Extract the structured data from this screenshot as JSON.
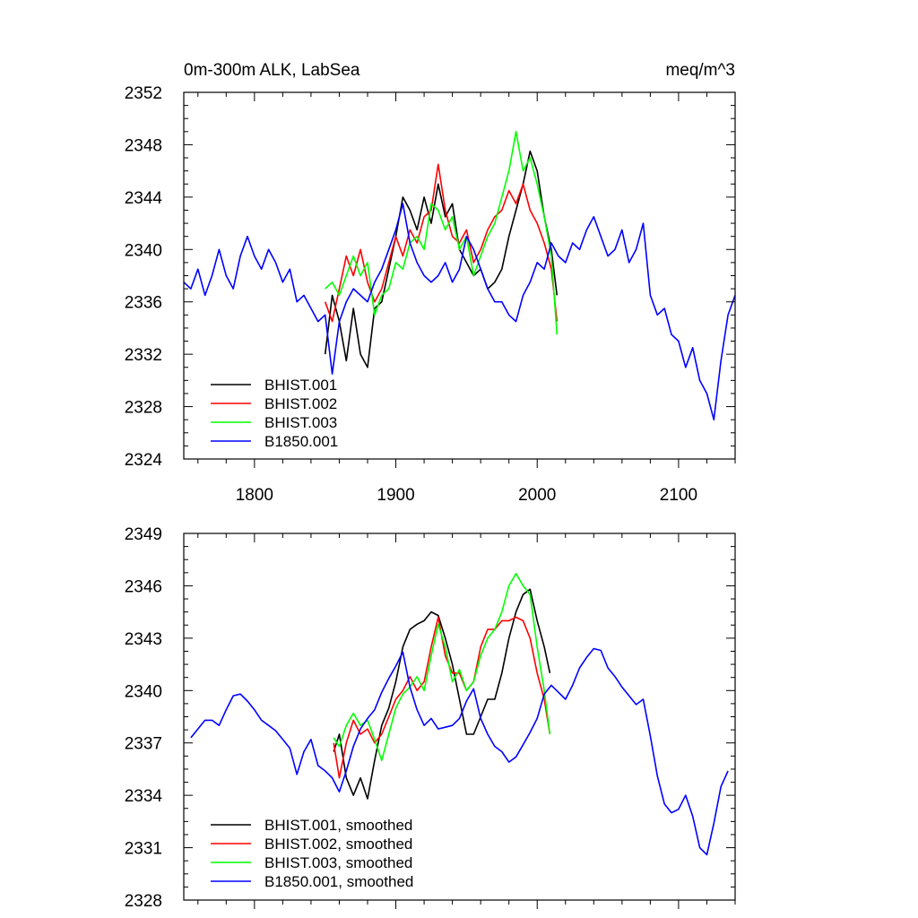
{
  "chart_data": [
    {
      "type": "line",
      "title": "0m-300m ALK, LabSea",
      "units": "meq/m^3",
      "xlabel": "",
      "ylabel": "",
      "xlim": [
        1750,
        2140
      ],
      "ylim": [
        2324,
        2352
      ],
      "x_ticks": [
        1800,
        1900,
        2000,
        2100
      ],
      "x_tick_labels": [
        "1800",
        "1900",
        "2000",
        "2100"
      ],
      "y_ticks": [
        2324,
        2328,
        2332,
        2336,
        2340,
        2344,
        2348,
        2352
      ],
      "y_tick_labels": [
        "2324",
        "2328",
        "2332",
        "2336",
        "2340",
        "2344",
        "2348",
        "2352"
      ],
      "legend_position": "bottom-left",
      "grid": false,
      "series": [
        {
          "name": "BHIST.001",
          "color": "#000000",
          "x": [
            1850,
            1855,
            1860,
            1865,
            1870,
            1875,
            1880,
            1885,
            1890,
            1895,
            1900,
            1905,
            1910,
            1915,
            1920,
            1925,
            1930,
            1935,
            1940,
            1945,
            1950,
            1955,
            1960,
            1965,
            1970,
            1975,
            1980,
            1985,
            1990,
            1995,
            2000,
            2005,
            2010,
            2014
          ],
          "y": [
            2332.0,
            2336.5,
            2334.5,
            2331.5,
            2335.5,
            2332.0,
            2331.0,
            2335.5,
            2336.0,
            2338.5,
            2341.0,
            2344.0,
            2343.0,
            2341.5,
            2344.0,
            2342.0,
            2345.0,
            2342.5,
            2343.5,
            2340.0,
            2339.0,
            2338.0,
            2338.5,
            2337.0,
            2337.5,
            2338.5,
            2341.0,
            2343.0,
            2345.0,
            2347.5,
            2346.0,
            2342.5,
            2340.0,
            2336.5
          ]
        },
        {
          "name": "BHIST.002",
          "color": "#ff0000",
          "x": [
            1850,
            1855,
            1860,
            1865,
            1870,
            1875,
            1880,
            1885,
            1890,
            1895,
            1900,
            1905,
            1910,
            1915,
            1920,
            1925,
            1930,
            1935,
            1940,
            1945,
            1950,
            1955,
            1960,
            1965,
            1970,
            1975,
            1980,
            1985,
            1990,
            1995,
            2000,
            2005,
            2010,
            2014
          ],
          "y": [
            2336.0,
            2334.5,
            2337.0,
            2339.5,
            2338.0,
            2340.0,
            2337.5,
            2336.0,
            2337.0,
            2339.0,
            2341.0,
            2339.5,
            2341.5,
            2340.5,
            2342.5,
            2343.0,
            2346.5,
            2343.0,
            2341.0,
            2340.5,
            2341.5,
            2339.0,
            2340.0,
            2341.5,
            2342.5,
            2343.0,
            2344.5,
            2343.5,
            2345.0,
            2343.0,
            2342.0,
            2340.5,
            2338.5,
            2334.5
          ]
        },
        {
          "name": "BHIST.003",
          "color": "#00ff00",
          "x": [
            1850,
            1855,
            1860,
            1865,
            1870,
            1875,
            1880,
            1885,
            1890,
            1895,
            1900,
            1905,
            1910,
            1915,
            1920,
            1925,
            1930,
            1935,
            1940,
            1945,
            1950,
            1955,
            1960,
            1965,
            1970,
            1975,
            1980,
            1985,
            1990,
            1995,
            2000,
            2005,
            2010,
            2014
          ],
          "y": [
            2337.0,
            2337.5,
            2336.5,
            2338.0,
            2339.5,
            2338.0,
            2339.0,
            2335.0,
            2336.5,
            2337.0,
            2339.0,
            2338.5,
            2340.5,
            2341.0,
            2340.0,
            2343.5,
            2343.0,
            2341.5,
            2342.5,
            2340.0,
            2341.0,
            2338.0,
            2339.5,
            2341.0,
            2342.0,
            2344.0,
            2346.0,
            2349.0,
            2346.0,
            2347.0,
            2345.0,
            2342.5,
            2339.5,
            2333.5
          ]
        },
        {
          "name": "B1850.001",
          "color": "#0000ff",
          "x": [
            1750,
            1755,
            1760,
            1765,
            1770,
            1775,
            1780,
            1785,
            1790,
            1795,
            1800,
            1805,
            1810,
            1815,
            1820,
            1825,
            1830,
            1835,
            1840,
            1845,
            1850,
            1855,
            1860,
            1865,
            1870,
            1875,
            1880,
            1885,
            1890,
            1895,
            1900,
            1905,
            1910,
            1915,
            1920,
            1925,
            1930,
            1935,
            1940,
            1945,
            1950,
            1955,
            1960,
            1965,
            1970,
            1975,
            1980,
            1985,
            1990,
            1995,
            2000,
            2005,
            2010,
            2015,
            2020,
            2025,
            2030,
            2035,
            2040,
            2045,
            2050,
            2055,
            2060,
            2065,
            2070,
            2075,
            2080,
            2085,
            2090,
            2095,
            2100,
            2105,
            2110,
            2115,
            2120,
            2125,
            2130,
            2135,
            2140
          ],
          "y": [
            2337.5,
            2337.0,
            2338.5,
            2336.5,
            2338.0,
            2340.0,
            2338.0,
            2337.0,
            2339.5,
            2341.0,
            2339.5,
            2338.5,
            2340.0,
            2339.0,
            2337.5,
            2338.5,
            2336.0,
            2336.5,
            2335.5,
            2334.5,
            2335.0,
            2330.5,
            2334.5,
            2336.0,
            2337.0,
            2336.5,
            2336.0,
            2337.5,
            2338.5,
            2340.0,
            2341.5,
            2343.5,
            2340.5,
            2339.0,
            2338.0,
            2337.5,
            2338.0,
            2339.0,
            2337.5,
            2338.5,
            2341.0,
            2340.0,
            2338.5,
            2337.0,
            2336.0,
            2336.0,
            2335.0,
            2334.5,
            2336.5,
            2337.5,
            2339.0,
            2338.5,
            2340.5,
            2339.5,
            2339.0,
            2340.5,
            2340.0,
            2341.5,
            2342.5,
            2341.0,
            2339.5,
            2340.0,
            2341.5,
            2339.0,
            2340.0,
            2342.0,
            2336.5,
            2335.0,
            2335.5,
            2333.5,
            2333.0,
            2331.0,
            2332.5,
            2330.0,
            2329.0,
            2327.0,
            2331.5,
            2335.0,
            2336.5
          ]
        }
      ]
    },
    {
      "type": "line",
      "title": "",
      "xlabel": "",
      "ylabel": "",
      "xlim": [
        1750,
        2140
      ],
      "ylim": [
        2328,
        2349
      ],
      "x_ticks": [
        1800,
        1900,
        2000,
        2100
      ],
      "x_tick_labels": [
        "",
        "",
        "",
        ""
      ],
      "y_ticks": [
        2328,
        2331,
        2334,
        2337,
        2340,
        2343,
        2346,
        2349
      ],
      "y_tick_labels": [
        "2328",
        "2331",
        "2334",
        "2337",
        "2340",
        "2343",
        "2346",
        "2349"
      ],
      "legend_position": "bottom-left",
      "grid": false,
      "series": [
        {
          "name": "BHIST.001, smoothed",
          "color": "#000000",
          "x": [
            1856,
            1860,
            1865,
            1870,
            1875,
            1880,
            1885,
            1890,
            1895,
            1900,
            1905,
            1910,
            1915,
            1920,
            1925,
            1930,
            1935,
            1940,
            1945,
            1950,
            1955,
            1960,
            1965,
            1970,
            1975,
            1980,
            1985,
            1990,
            1995,
            2000,
            2005,
            2009
          ],
          "y": [
            2336.5,
            2337.5,
            2335.0,
            2334.0,
            2335.0,
            2333.8,
            2336.0,
            2338.0,
            2339.0,
            2340.5,
            2342.5,
            2343.5,
            2343.8,
            2344.0,
            2344.5,
            2344.3,
            2343.0,
            2341.5,
            2339.5,
            2337.5,
            2337.5,
            2338.5,
            2339.5,
            2339.5,
            2341.0,
            2343.0,
            2344.5,
            2345.5,
            2345.8,
            2344.0,
            2342.5,
            2341.0
          ]
        },
        {
          "name": "BHIST.002, smoothed",
          "color": "#ff0000",
          "x": [
            1856,
            1860,
            1865,
            1870,
            1875,
            1880,
            1885,
            1890,
            1895,
            1900,
            1905,
            1910,
            1915,
            1920,
            1925,
            1930,
            1935,
            1940,
            1945,
            1950,
            1955,
            1960,
            1965,
            1970,
            1975,
            1980,
            1985,
            1990,
            1995,
            2000,
            2005,
            2009
          ],
          "y": [
            2337.0,
            2335.0,
            2337.0,
            2338.3,
            2337.5,
            2337.8,
            2337.0,
            2337.5,
            2338.5,
            2339.5,
            2340.0,
            2340.8,
            2340.0,
            2340.5,
            2342.5,
            2344.2,
            2342.0,
            2341.0,
            2341.0,
            2340.0,
            2340.5,
            2342.5,
            2343.5,
            2343.5,
            2344.0,
            2344.0,
            2344.2,
            2344.0,
            2343.0,
            2341.0,
            2339.5,
            2337.5
          ]
        },
        {
          "name": "BHIST.003, smoothed",
          "color": "#00ff00",
          "x": [
            1856,
            1860,
            1865,
            1870,
            1875,
            1880,
            1885,
            1890,
            1895,
            1900,
            1905,
            1910,
            1915,
            1920,
            1925,
            1930,
            1935,
            1940,
            1945,
            1950,
            1955,
            1960,
            1965,
            1970,
            1975,
            1980,
            1985,
            1990,
            1995,
            2000,
            2005,
            2009
          ],
          "y": [
            2337.3,
            2336.8,
            2338.0,
            2338.7,
            2338.0,
            2338.3,
            2337.2,
            2336.0,
            2337.5,
            2339.0,
            2339.8,
            2340.2,
            2340.8,
            2340.0,
            2342.0,
            2343.8,
            2342.5,
            2340.5,
            2341.2,
            2340.0,
            2340.5,
            2342.0,
            2343.0,
            2343.5,
            2344.5,
            2346.0,
            2346.7,
            2346.0,
            2345.5,
            2342.5,
            2340.0,
            2337.5
          ]
        },
        {
          "name": "B1850.001, smoothed",
          "color": "#0000ff",
          "x": [
            1755,
            1760,
            1765,
            1770,
            1775,
            1780,
            1785,
            1790,
            1795,
            1800,
            1805,
            1810,
            1815,
            1820,
            1825,
            1830,
            1835,
            1840,
            1845,
            1850,
            1855,
            1860,
            1865,
            1870,
            1875,
            1880,
            1885,
            1890,
            1895,
            1900,
            1905,
            1910,
            1915,
            1920,
            1925,
            1930,
            1935,
            1940,
            1945,
            1950,
            1955,
            1960,
            1965,
            1970,
            1975,
            1980,
            1985,
            1990,
            1995,
            2000,
            2005,
            2010,
            2015,
            2020,
            2025,
            2030,
            2035,
            2040,
            2045,
            2050,
            2055,
            2060,
            2065,
            2070,
            2075,
            2080,
            2085,
            2090,
            2095,
            2100,
            2105,
            2110,
            2115,
            2120,
            2125,
            2130,
            2135
          ],
          "y": [
            2337.3,
            2337.8,
            2338.3,
            2338.3,
            2338.0,
            2338.9,
            2339.7,
            2339.8,
            2339.4,
            2338.9,
            2338.3,
            2338.0,
            2337.7,
            2337.2,
            2336.7,
            2335.2,
            2336.5,
            2337.2,
            2335.7,
            2335.4,
            2335.0,
            2334.2,
            2335.4,
            2336.8,
            2337.8,
            2338.4,
            2338.9,
            2339.9,
            2340.7,
            2341.4,
            2342.2,
            2340.2,
            2338.9,
            2338.0,
            2338.4,
            2337.8,
            2337.9,
            2338.0,
            2338.4,
            2339.4,
            2340.1,
            2338.4,
            2337.5,
            2336.8,
            2336.5,
            2335.9,
            2336.2,
            2336.9,
            2337.6,
            2338.4,
            2339.8,
            2340.3,
            2339.9,
            2339.5,
            2340.3,
            2341.3,
            2341.9,
            2342.4,
            2342.3,
            2341.3,
            2340.8,
            2340.2,
            2339.7,
            2339.2,
            2339.5,
            2337.4,
            2335.1,
            2333.5,
            2333.0,
            2333.2,
            2334.0,
            2332.8,
            2331.0,
            2330.6,
            2332.4,
            2334.5,
            2335.4
          ]
        }
      ]
    }
  ]
}
